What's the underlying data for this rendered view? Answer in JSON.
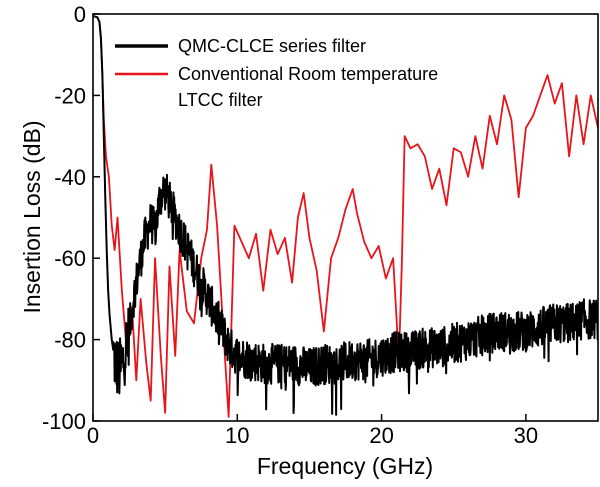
{
  "chart_data": {
    "type": "line",
    "title": "",
    "xlabel": "Frequency (GHz)",
    "ylabel": "Insertion Loss (dB)",
    "xlim": [
      0,
      35
    ],
    "ylim": [
      -100,
      0
    ],
    "xticks": [
      0,
      10,
      20,
      30
    ],
    "yticks": [
      0,
      -20,
      -40,
      -60,
      -80,
      -100
    ],
    "grid": false,
    "legend_position": "top-right",
    "legend": [
      "QMC-CLCE series filter",
      "Conventional Room temperature LTCC filter"
    ],
    "series": [
      {
        "name": "QMC-CLCE series filter",
        "color": "#000000",
        "noise_amplitude": 5,
        "x": [
          0.0,
          0.3,
          0.45,
          0.55,
          0.65,
          0.75,
          0.85,
          0.95,
          1.05,
          1.15,
          1.3,
          1.5,
          1.8,
          2.1,
          2.5,
          2.8,
          3.2,
          3.6,
          4.0,
          4.3,
          4.6,
          4.9,
          5.1,
          5.5,
          6.0,
          6.5,
          7.0,
          7.5,
          8.0,
          8.5,
          9.0,
          9.5,
          10.0,
          11,
          12,
          13,
          14,
          15,
          16,
          17,
          18,
          19,
          20,
          21,
          22,
          23,
          24,
          25,
          26,
          27,
          28,
          29,
          30,
          31,
          32,
          33,
          34,
          35
        ],
        "y": [
          -0.5,
          -0.8,
          -2,
          -6,
          -15,
          -30,
          -45,
          -58,
          -68,
          -74,
          -80,
          -85,
          -88,
          -85,
          -78,
          -70,
          -62,
          -55,
          -51,
          -53,
          -46,
          -43,
          -44,
          -48,
          -53,
          -57,
          -62,
          -66,
          -70,
          -74,
          -78,
          -82,
          -84,
          -85,
          -86,
          -86,
          -86,
          -87,
          -86,
          -86,
          -85,
          -85,
          -84,
          -83,
          -83,
          -82,
          -82,
          -81,
          -80,
          -79,
          -78,
          -78,
          -78,
          -77,
          -76,
          -76,
          -75,
          -75
        ]
      },
      {
        "name": "Conventional Room temperature LTCC filter",
        "color": "#e8141c",
        "x": [
          0.0,
          0.3,
          0.45,
          0.55,
          0.65,
          0.75,
          0.9,
          1.1,
          1.3,
          1.5,
          1.7,
          2.0,
          2.3,
          2.7,
          3.0,
          3.3,
          3.7,
          4.0,
          4.3,
          4.7,
          5.0,
          5.3,
          5.7,
          6.0,
          6.5,
          7.0,
          7.5,
          7.9,
          8.2,
          8.6,
          9.0,
          9.4,
          9.8,
          10.3,
          10.8,
          11.3,
          11.8,
          12.3,
          12.8,
          13.3,
          13.8,
          14.2,
          14.6,
          15.0,
          15.5,
          16.0,
          16.5,
          17.0,
          17.5,
          18.0,
          18.3,
          18.8,
          19.3,
          19.8,
          20.3,
          20.8,
          21.2,
          21.4,
          21.6,
          22.0,
          22.5,
          23.0,
          23.5,
          24.0,
          24.5,
          25.0,
          25.5,
          26.0,
          26.5,
          27.0,
          27.5,
          28.0,
          28.5,
          29.0,
          29.5,
          30.0,
          30.5,
          31.0,
          31.5,
          32.0,
          32.5,
          33.0,
          33.5,
          34.0,
          34.5,
          35.0
        ],
        "y": [
          -0.5,
          -0.8,
          -2,
          -6,
          -15,
          -26,
          -35,
          -40,
          -52,
          -58,
          -50,
          -68,
          -81,
          -72,
          -90,
          -70,
          -86,
          -95,
          -60,
          -84,
          -98,
          -62,
          -84,
          -58,
          -73,
          -76,
          -60,
          -53,
          -37,
          -52,
          -76,
          -99,
          -52,
          -56,
          -60,
          -54,
          -68,
          -53,
          -59,
          -55,
          -66,
          -50,
          -44,
          -55,
          -63,
          -78,
          -60,
          -55,
          -48,
          -43,
          -49,
          -56,
          -60,
          -57,
          -65,
          -60,
          -85,
          -62,
          -30,
          -33,
          -32,
          -35,
          -43,
          -38,
          -47,
          -33,
          -34,
          -40,
          -30,
          -38,
          -25,
          -32,
          -20,
          -26,
          -45,
          -28,
          -25,
          -20,
          -15,
          -22,
          -17,
          -35,
          -20,
          -32,
          -20,
          -28
        ]
      }
    ]
  }
}
